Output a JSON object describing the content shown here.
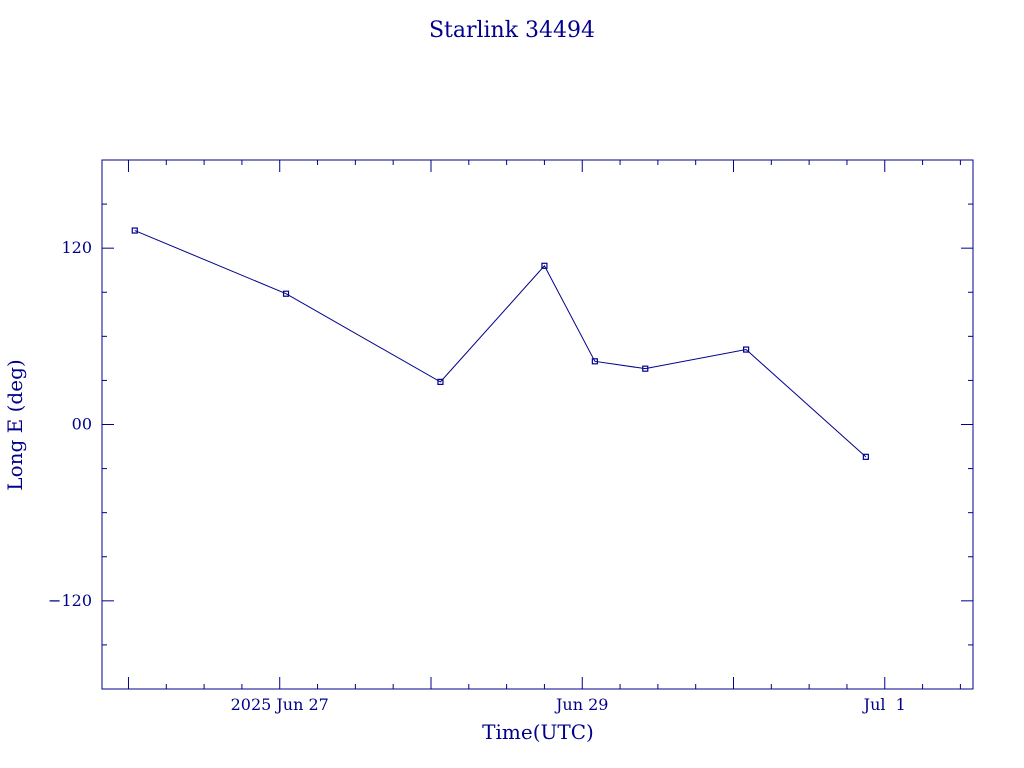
{
  "chart_data": {
    "type": "line",
    "title": "Starlink 34494",
    "xlabel": "Time(UTC)",
    "ylabel": "Long E (deg)",
    "x_tick_labels": [
      "2025 Jun 27",
      "Jun 29",
      "Jul  1"
    ],
    "x_tick_dates": [
      "2025-06-27T00:00",
      "2025-06-29T00:00",
      "2025-07-01T00:00"
    ],
    "y_tick_labels": [
      "120",
      "00",
      "−120"
    ],
    "y_tick_values": [
      120,
      0,
      -120
    ],
    "xlim": [
      "2025-06-25T19:48",
      "2025-07-01T14:00"
    ],
    "ylim": [
      -180,
      180
    ],
    "grid": false,
    "color": "#00008b",
    "series": [
      {
        "x": [
          "2025-06-26T01:00",
          "2025-06-27T01:00",
          "2025-06-28T01:30",
          "2025-06-28T18:00",
          "2025-06-29T02:00",
          "2025-06-29T10:00",
          "2025-06-30T02:00",
          "2025-06-30T21:00"
        ],
        "y": [
          132,
          89,
          29,
          108,
          43,
          38,
          51,
          -22
        ]
      }
    ]
  }
}
